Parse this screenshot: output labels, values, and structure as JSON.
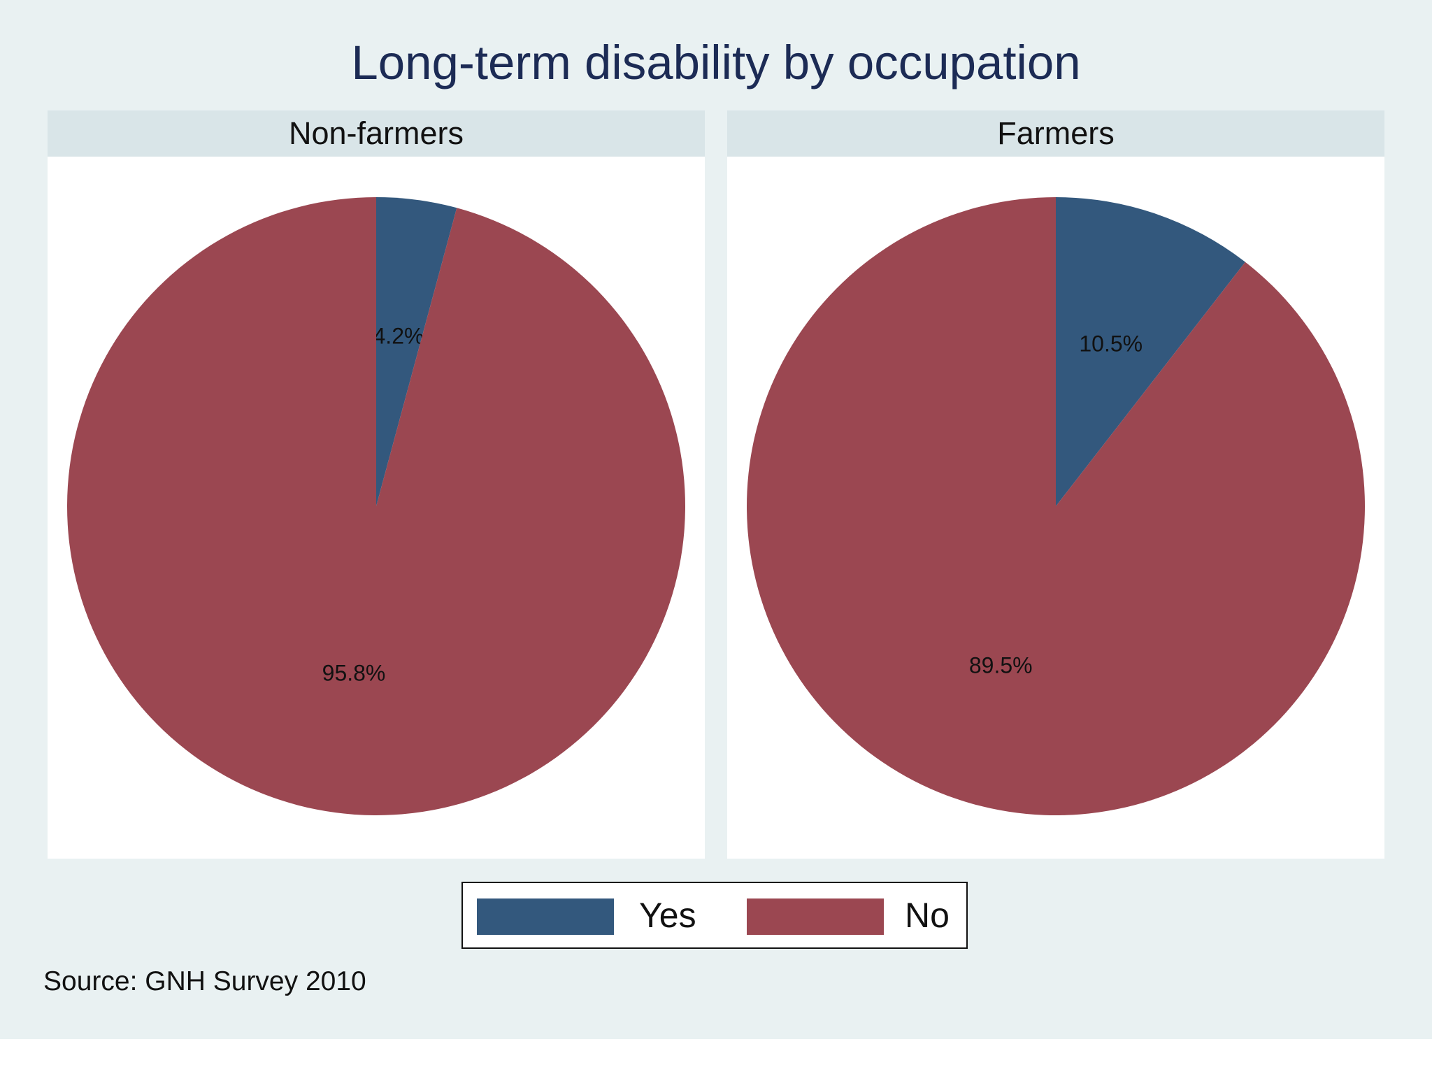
{
  "chart_data": {
    "type": "pie",
    "title": "Long-term disability by occupation",
    "categories": [
      "Yes",
      "No"
    ],
    "colors": {
      "Yes": "#33587d",
      "No": "#9b4751"
    },
    "panels": [
      {
        "name": "Non-farmers",
        "slices": [
          {
            "label": "Yes",
            "value": 4.2,
            "text": "4.2%"
          },
          {
            "label": "No",
            "value": 95.8,
            "text": "95.8%"
          }
        ]
      },
      {
        "name": "Farmers",
        "slices": [
          {
            "label": "Yes",
            "value": 10.5,
            "text": "10.5%"
          },
          {
            "label": "No",
            "value": 89.5,
            "text": "89.5%"
          }
        ]
      }
    ],
    "legend": {
      "position": "bottom",
      "items": [
        {
          "label": "Yes",
          "color": "#33587d"
        },
        {
          "label": "No",
          "color": "#9b4751"
        }
      ]
    },
    "note": "Source: GNH Survey 2010"
  }
}
